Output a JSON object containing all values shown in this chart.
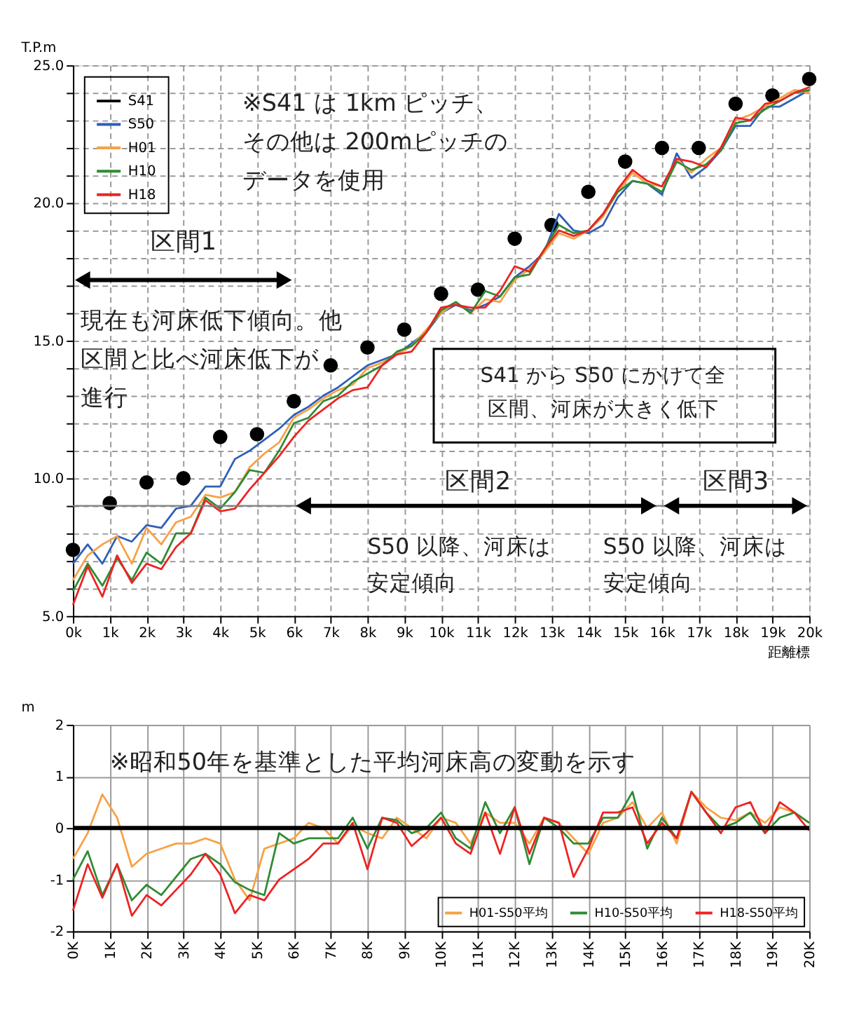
{
  "chart_data": [
    {
      "type": "line",
      "ylabel": "T.P.m",
      "xlabel": "距離標",
      "annotations": [
        "※S41 は 1km ピッチ、その他は 200mピッチのデータを使用",
        "区間1",
        "現在も河床低下傾向。他区間と比べ河床低下が進行",
        "S41 から S50 にかけて全区間、河床が大きく低下",
        "区間2",
        "S50 以降、河床は安定傾向",
        "区間3",
        "S50 以降、河床は安定傾向"
      ],
      "ref_lines": [
        {
          "axis": "y",
          "value": 9,
          "color": "#808080"
        }
      ],
      "x": [
        0,
        0.4,
        0.8,
        1.2,
        1.6,
        2.0,
        2.4,
        2.8,
        3.2,
        3.6,
        4.0,
        4.4,
        4.8,
        5.2,
        5.6,
        6.0,
        6.4,
        6.8,
        7.2,
        7.6,
        8.0,
        8.4,
        8.8,
        9.2,
        9.6,
        10.0,
        10.4,
        10.8,
        11.2,
        11.6,
        12.0,
        12.4,
        12.8,
        13.2,
        13.6,
        14.0,
        14.4,
        14.8,
        15.2,
        15.6,
        16.0,
        16.4,
        16.8,
        17.2,
        17.6,
        18.0,
        18.4,
        18.8,
        19.2,
        19.6,
        20.0
      ],
      "series": [
        {
          "name": "S41",
          "type": "scatter",
          "marker": "circle",
          "color": "#000000",
          "x": [
            0,
            1,
            2,
            3,
            4,
            5,
            6,
            7,
            8,
            9,
            10,
            11,
            12,
            13,
            14,
            15,
            16,
            17,
            18,
            19,
            20
          ],
          "values": [
            7.4,
            9.1,
            9.85,
            10.0,
            11.5,
            11.6,
            12.8,
            14.1,
            14.75,
            15.4,
            16.7,
            16.85,
            18.7,
            19.2,
            20.4,
            21.5,
            22.0,
            22.0,
            23.6,
            23.9,
            24.5
          ]
        },
        {
          "name": "S50",
          "color": "#2f5fb8",
          "values": [
            6.9,
            7.6,
            6.9,
            7.9,
            7.7,
            8.3,
            8.2,
            8.9,
            9.0,
            9.7,
            9.7,
            10.7,
            11.0,
            11.4,
            11.8,
            12.3,
            12.6,
            13.0,
            13.3,
            13.7,
            14.1,
            14.3,
            14.5,
            14.9,
            15.3,
            16.0,
            16.3,
            16.1,
            16.3,
            16.6,
            17.3,
            17.7,
            18.2,
            19.6,
            19.0,
            18.9,
            19.2,
            20.2,
            20.8,
            20.7,
            20.3,
            21.8,
            20.9,
            21.3,
            21.9,
            22.8,
            22.8,
            23.5,
            23.5,
            23.8,
            24.1
          ]
        },
        {
          "name": "H01",
          "color": "#f7a144",
          "values": [
            6.3,
            7.2,
            7.6,
            7.9,
            6.9,
            8.2,
            7.6,
            8.4,
            8.6,
            9.4,
            9.3,
            9.5,
            10.4,
            10.9,
            11.3,
            12.2,
            12.5,
            12.9,
            13.2,
            13.4,
            14.0,
            14.2,
            14.5,
            14.8,
            15.4,
            16.0,
            16.4,
            16.0,
            16.5,
            16.4,
            17.2,
            17.6,
            18.2,
            18.9,
            18.7,
            19.0,
            19.5,
            20.4,
            21.1,
            20.7,
            20.6,
            21.6,
            21.1,
            21.6,
            22.0,
            23.0,
            23.2,
            23.5,
            23.8,
            24.1,
            24.0
          ]
        },
        {
          "name": "H10",
          "color": "#2e8b34",
          "values": [
            5.9,
            6.9,
            6.1,
            7.1,
            6.3,
            7.3,
            6.9,
            8.0,
            8.0,
            9.3,
            8.9,
            9.5,
            10.3,
            10.2,
            11.0,
            12.0,
            12.2,
            12.8,
            13.0,
            13.5,
            13.8,
            14.1,
            14.6,
            14.8,
            15.3,
            16.1,
            16.4,
            16.0,
            16.8,
            16.6,
            17.3,
            17.4,
            18.3,
            19.2,
            18.9,
            19.0,
            19.6,
            20.4,
            20.8,
            20.7,
            20.4,
            21.5,
            21.2,
            21.4,
            21.9,
            22.9,
            23.0,
            23.4,
            23.7,
            24.0,
            24.1
          ]
        },
        {
          "name": "H18",
          "color": "#ee2222",
          "values": [
            5.4,
            6.8,
            5.7,
            7.2,
            6.2,
            6.9,
            6.7,
            7.5,
            8.0,
            9.2,
            8.8,
            8.9,
            9.6,
            10.2,
            10.8,
            11.5,
            12.1,
            12.5,
            12.9,
            13.2,
            13.3,
            14.1,
            14.5,
            14.6,
            15.3,
            16.2,
            16.3,
            16.2,
            16.2,
            16.8,
            17.7,
            17.5,
            18.3,
            19.0,
            18.8,
            19.0,
            19.6,
            20.5,
            21.2,
            20.8,
            20.6,
            21.6,
            21.5,
            21.3,
            22.0,
            23.1,
            23.0,
            23.6,
            23.7,
            24.0,
            24.2
          ]
        }
      ],
      "xlim": [
        0,
        20
      ],
      "xticks": [
        {
          "value": 0,
          "label": "0k"
        },
        {
          "value": 1,
          "label": "1k"
        },
        {
          "value": 2,
          "label": "2k"
        },
        {
          "value": 3,
          "label": "3k"
        },
        {
          "value": 4,
          "label": "4k"
        },
        {
          "value": 5,
          "label": "5k"
        },
        {
          "value": 6,
          "label": "6k"
        },
        {
          "value": 7,
          "label": "7k"
        },
        {
          "value": 8,
          "label": "8k"
        },
        {
          "value": 9,
          "label": "9k"
        },
        {
          "value": 10,
          "label": "10k"
        },
        {
          "value": 11,
          "label": "11k"
        },
        {
          "value": 12,
          "label": "12k"
        },
        {
          "value": 13,
          "label": "13k"
        },
        {
          "value": 14,
          "label": "14k"
        },
        {
          "value": 15,
          "label": "15k"
        },
        {
          "value": 16,
          "label": "16k"
        },
        {
          "value": 17,
          "label": "17k"
        },
        {
          "value": 18,
          "label": "18k"
        },
        {
          "value": 19,
          "label": "19k"
        },
        {
          "value": 20,
          "label": "20k"
        }
      ],
      "ylim": [
        5,
        25
      ],
      "yticks": [
        {
          "value": 5,
          "label": "5.0"
        },
        {
          "value": 6,
          "label": null
        },
        {
          "value": 7,
          "label": null
        },
        {
          "value": 8,
          "label": null
        },
        {
          "value": 9,
          "label": null
        },
        {
          "value": 10,
          "label": "10.0"
        },
        {
          "value": 11,
          "label": null
        },
        {
          "value": 12,
          "label": null
        },
        {
          "value": 13,
          "label": null
        },
        {
          "value": 14,
          "label": null
        },
        {
          "value": 15,
          "label": "15.0"
        },
        {
          "value": 16,
          "label": null
        },
        {
          "value": 17,
          "label": null
        },
        {
          "value": 18,
          "label": null
        },
        {
          "value": 19,
          "label": null
        },
        {
          "value": 20,
          "label": "20.0"
        },
        {
          "value": 21,
          "label": null
        },
        {
          "value": 22,
          "label": null
        },
        {
          "value": 23,
          "label": null
        },
        {
          "value": 24,
          "label": null
        },
        {
          "value": 25,
          "label": "25.0"
        }
      ],
      "grid": true,
      "legend": "top left",
      "line_style": "solid"
    },
    {
      "type": "line",
      "ylabel": "m",
      "annotations": [
        "※昭和50年を基準とした平均河床高の変動を示す"
      ],
      "ref_lines": [
        {
          "axis": "y",
          "value": 0,
          "color": "#000000"
        }
      ],
      "x": [
        0,
        0.4,
        0.8,
        1.2,
        1.6,
        2.0,
        2.4,
        2.8,
        3.2,
        3.6,
        4.0,
        4.4,
        4.8,
        5.2,
        5.6,
        6.0,
        6.4,
        6.8,
        7.2,
        7.6,
        8.0,
        8.4,
        8.8,
        9.2,
        9.6,
        10.0,
        10.4,
        10.8,
        11.2,
        11.6,
        12.0,
        12.4,
        12.8,
        13.2,
        13.6,
        14.0,
        14.4,
        14.8,
        15.2,
        15.6,
        16.0,
        16.4,
        16.8,
        17.2,
        17.6,
        18.0,
        18.4,
        18.8,
        19.2,
        19.6,
        20.0
      ],
      "series": [
        {
          "name": "H01-S50平均",
          "color": "#f7a144",
          "values": [
            -0.6,
            -0.1,
            0.65,
            0.2,
            -0.75,
            -0.5,
            -0.4,
            -0.3,
            -0.3,
            -0.2,
            -0.3,
            -1.0,
            -1.4,
            -0.4,
            -0.3,
            -0.2,
            0.1,
            0.0,
            -0.3,
            0.05,
            -0.1,
            -0.2,
            0.2,
            0.0,
            -0.2,
            0.2,
            0.1,
            -0.3,
            0.3,
            0.1,
            0.1,
            -0.3,
            0.2,
            0.1,
            -0.2,
            -0.5,
            0.1,
            0.2,
            0.5,
            0.0,
            0.3,
            -0.3,
            0.7,
            0.4,
            0.2,
            0.15,
            0.3,
            0.1,
            0.4,
            0.3,
            0.1
          ]
        },
        {
          "name": "H10-S50平均",
          "color": "#2e8b34",
          "values": [
            -1.0,
            -0.45,
            -1.3,
            -0.7,
            -1.4,
            -1.1,
            -1.3,
            -0.95,
            -0.6,
            -0.5,
            -0.7,
            -1.05,
            -1.2,
            -1.3,
            -0.1,
            -0.3,
            -0.2,
            -0.2,
            -0.2,
            0.2,
            -0.4,
            0.2,
            0.15,
            -0.1,
            0.0,
            0.3,
            -0.2,
            -0.4,
            0.5,
            -0.1,
            0.4,
            -0.7,
            0.2,
            0.0,
            -0.3,
            -0.3,
            0.2,
            0.2,
            0.7,
            -0.4,
            0.2,
            -0.2,
            0.7,
            0.3,
            0.0,
            0.1,
            0.3,
            -0.1,
            0.2,
            0.3,
            0.1
          ]
        },
        {
          "name": "H18-S50平均",
          "color": "#ee2222",
          "values": [
            -1.6,
            -0.7,
            -1.35,
            -0.7,
            -1.7,
            -1.3,
            -1.5,
            -1.2,
            -0.9,
            -0.5,
            -0.9,
            -1.65,
            -1.3,
            -1.4,
            -1.0,
            -0.8,
            -0.6,
            -0.3,
            -0.3,
            0.1,
            -0.8,
            0.2,
            0.1,
            -0.35,
            -0.1,
            0.2,
            -0.3,
            -0.5,
            0.3,
            -0.5,
            0.4,
            -0.5,
            0.2,
            0.1,
            -0.95,
            -0.4,
            0.3,
            0.3,
            0.4,
            -0.3,
            0.1,
            -0.2,
            0.7,
            0.3,
            -0.1,
            0.4,
            0.5,
            -0.1,
            0.5,
            0.3,
            -0.05
          ]
        }
      ],
      "xlim": [
        0,
        20
      ],
      "xticks": [
        {
          "value": 0,
          "label": "0K"
        },
        {
          "value": 1,
          "label": "1K"
        },
        {
          "value": 2,
          "label": "2K"
        },
        {
          "value": 3,
          "label": "3K"
        },
        {
          "value": 4,
          "label": "4K"
        },
        {
          "value": 5,
          "label": "5K"
        },
        {
          "value": 6,
          "label": "6K"
        },
        {
          "value": 7,
          "label": "7K"
        },
        {
          "value": 8,
          "label": "8K"
        },
        {
          "value": 9,
          "label": "9K"
        },
        {
          "value": 10,
          "label": "10K"
        },
        {
          "value": 11,
          "label": "11K"
        },
        {
          "value": 12,
          "label": "12K"
        },
        {
          "value": 13,
          "label": "13K"
        },
        {
          "value": 14,
          "label": "14K"
        },
        {
          "value": 15,
          "label": "15K"
        },
        {
          "value": 16,
          "label": "16K"
        },
        {
          "value": 17,
          "label": "17K"
        },
        {
          "value": 18,
          "label": "18K"
        },
        {
          "value": 19,
          "label": "19K"
        },
        {
          "value": 20,
          "label": "20K"
        }
      ],
      "ylim": [
        -2,
        2
      ],
      "yticks": [
        -2,
        -1,
        0,
        1,
        2
      ],
      "grid": true,
      "legend": "bottom right",
      "line_style": "solid"
    }
  ]
}
